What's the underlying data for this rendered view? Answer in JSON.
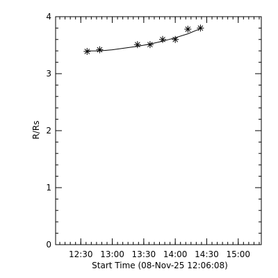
{
  "chart_data": {
    "type": "scatter",
    "xlabel": "Start Time (08-Nov-25 12:06:08)",
    "ylabel": "R/Rs",
    "x_unit": "time of day (HH:MM)",
    "xlim": [
      "12:06",
      "15:22"
    ],
    "ylim": [
      0,
      4
    ],
    "x_ticks": [
      "12:30",
      "13:00",
      "13:30",
      "14:00",
      "14:30",
      "15:00"
    ],
    "y_ticks": [
      "0",
      "1",
      "2",
      "3",
      "4"
    ],
    "x_minor_step_min": 5,
    "y_minor_step": 0.2,
    "grid": false,
    "legend": "none",
    "marker": "asterisk",
    "series": [
      {
        "x": [
          "12:36",
          "12:48",
          "13:24",
          "13:36",
          "13:48",
          "14:00",
          "14:12",
          "14:24"
        ],
        "y": [
          3.39,
          3.42,
          3.51,
          3.51,
          3.6,
          3.6,
          3.78,
          3.8
        ]
      }
    ],
    "fit": {
      "x": [
        "12:36",
        "12:48",
        "13:00",
        "13:12",
        "13:24",
        "13:36",
        "13:48",
        "14:00",
        "14:12",
        "14:24"
      ],
      "y": [
        3.4,
        3.4,
        3.42,
        3.45,
        3.48,
        3.52,
        3.57,
        3.63,
        3.7,
        3.79
      ]
    }
  }
}
